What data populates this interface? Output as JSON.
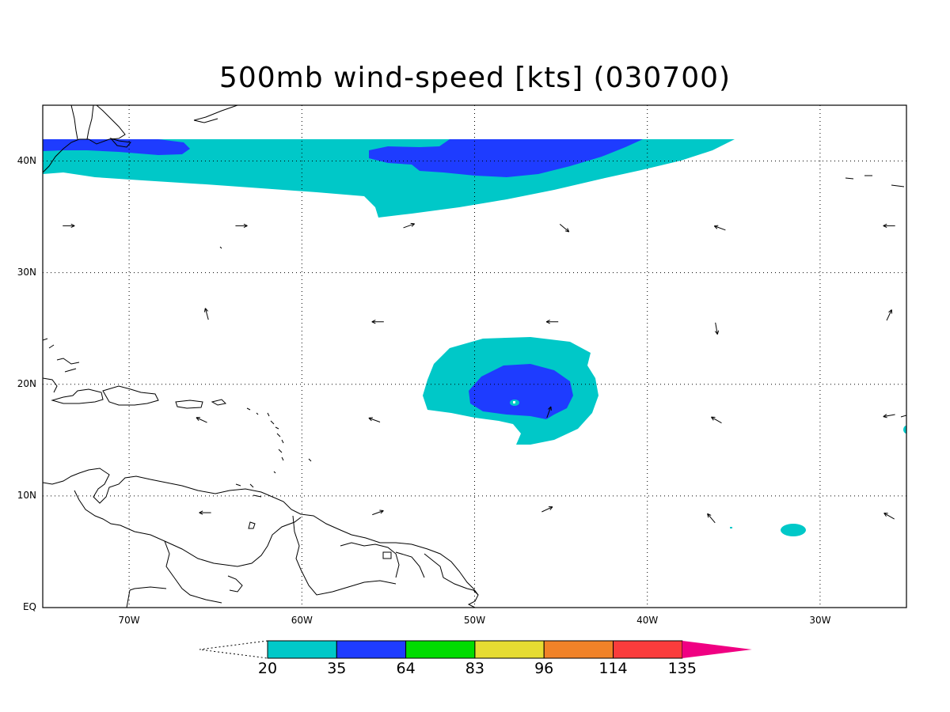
{
  "title": "500mb wind-speed [kts] (030700)",
  "map": {
    "lon_range": [
      -75,
      -25
    ],
    "lat_range": [
      0,
      45
    ],
    "x_ticks": [
      {
        "lon": -70,
        "label": "70W"
      },
      {
        "lon": -60,
        "label": "60W"
      },
      {
        "lon": -50,
        "label": "50W"
      },
      {
        "lon": -40,
        "label": "40W"
      },
      {
        "lon": -30,
        "label": "30W"
      }
    ],
    "y_ticks": [
      {
        "lat": 40,
        "label": "40N"
      },
      {
        "lat": 30,
        "label": "30N"
      },
      {
        "lat": 20,
        "label": "20N"
      },
      {
        "lat": 10,
        "label": "10N"
      },
      {
        "lat": 0,
        "label": "EQ"
      }
    ],
    "grid": "dotted",
    "frame_color": "#000000"
  },
  "colorbar": {
    "bins": [
      {
        "color": "#00c8c8"
      },
      {
        "color": "#1e3cff"
      },
      {
        "color": "#00dc00"
      },
      {
        "color": "#e6dc32"
      },
      {
        "color": "#f08228"
      },
      {
        "color": "#fa3c3c"
      }
    ],
    "upper_color": "#f00082",
    "labels": [
      "20",
      "35",
      "64",
      "83",
      "96",
      "114",
      "135"
    ]
  },
  "wind_vectors": [
    {
      "lon": -73.5,
      "lat": 34.2,
      "dir": 0
    },
    {
      "lon": -63.5,
      "lat": 34.2,
      "dir": 0
    },
    {
      "lon": -53.8,
      "lat": 34.2,
      "dir": 20
    },
    {
      "lon": -44.8,
      "lat": 34.0,
      "dir": -40
    },
    {
      "lon": -35.8,
      "lat": 34.0,
      "dir": 160
    },
    {
      "lon": -26.0,
      "lat": 34.2,
      "dir": 180
    },
    {
      "lon": -65.5,
      "lat": 26.3,
      "dir": 105
    },
    {
      "lon": -55.6,
      "lat": 25.6,
      "dir": 180
    },
    {
      "lon": -45.5,
      "lat": 25.6,
      "dir": 180
    },
    {
      "lon": -36.0,
      "lat": 25.0,
      "dir": -80
    },
    {
      "lon": -26.0,
      "lat": 26.2,
      "dir": 65
    },
    {
      "lon": -65.8,
      "lat": 16.8,
      "dir": 155
    },
    {
      "lon": -55.8,
      "lat": 16.8,
      "dir": 160
    },
    {
      "lon": -45.7,
      "lat": 17.5,
      "dir": 70
    },
    {
      "lon": -36.0,
      "lat": 16.8,
      "dir": 150
    },
    {
      "lon": -26.0,
      "lat": 17.2,
      "dir": 190
    },
    {
      "lon": -65.6,
      "lat": 8.5,
      "dir": 180
    },
    {
      "lon": -55.6,
      "lat": 8.5,
      "dir": 20
    },
    {
      "lon": -45.8,
      "lat": 8.8,
      "dir": 25
    },
    {
      "lon": -36.3,
      "lat": 8.0,
      "dir": 130
    },
    {
      "lon": -26.0,
      "lat": 8.2,
      "dir": 150
    }
  ]
}
